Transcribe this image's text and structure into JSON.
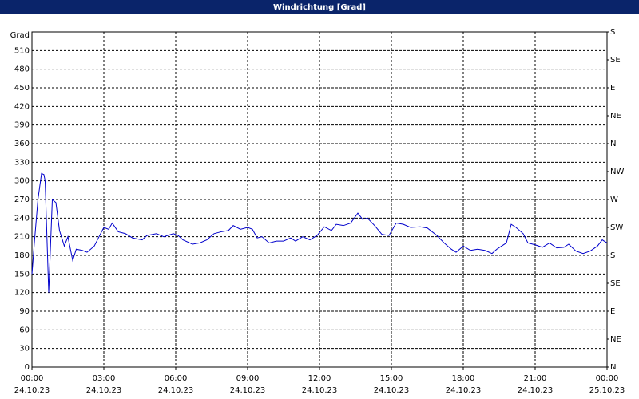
{
  "chart_data": {
    "type": "line",
    "title": "Windrichtung [Grad]",
    "ylabel": "Grad",
    "xlim": [
      0,
      24
    ],
    "xticks": [
      {
        "value": 0,
        "label": "00:00"
      },
      {
        "value": 3,
        "label": "03:00"
      },
      {
        "value": 6,
        "label": "06:00"
      },
      {
        "value": 9,
        "label": "09:00"
      },
      {
        "value": 12,
        "label": "12:00"
      },
      {
        "value": 15,
        "label": "15:00"
      },
      {
        "value": 18,
        "label": "18:00"
      },
      {
        "value": 21,
        "label": "21:00"
      },
      {
        "value": 24,
        "label": "00:00"
      }
    ],
    "xtick_dates": [
      "24.10.23",
      "24.10.23",
      "24.10.23",
      "24.10.23",
      "24.10.23",
      "24.10.23",
      "24.10.23",
      "24.10.23",
      "25.10.23"
    ],
    "ylim": [
      0,
      540
    ],
    "yticks": [
      0,
      30,
      60,
      90,
      120,
      150,
      180,
      210,
      240,
      270,
      300,
      330,
      360,
      390,
      420,
      450,
      480,
      510
    ],
    "y2lim": [
      0,
      540
    ],
    "y2ticks": [
      {
        "value": 0,
        "label": "N"
      },
      {
        "value": 45,
        "label": "NE"
      },
      {
        "value": 90,
        "label": "E"
      },
      {
        "value": 135,
        "label": "SE"
      },
      {
        "value": 180,
        "label": "S"
      },
      {
        "value": 225,
        "label": "SW"
      },
      {
        "value": 270,
        "label": "W"
      },
      {
        "value": 315,
        "label": "NW"
      },
      {
        "value": 360,
        "label": "N"
      },
      {
        "value": 405,
        "label": "NE"
      },
      {
        "value": 450,
        "label": "E"
      },
      {
        "value": 495,
        "label": "SE"
      },
      {
        "value": 540,
        "label": "S"
      }
    ],
    "grid": true,
    "x": [
      0,
      0.1,
      0.25,
      0.4,
      0.5,
      0.55,
      0.7,
      0.85,
      1.0,
      1.15,
      1.35,
      1.5,
      1.7,
      1.85,
      2.1,
      2.3,
      2.6,
      2.8,
      3.0,
      3.2,
      3.35,
      3.6,
      3.9,
      4.2,
      4.6,
      4.8,
      5.2,
      5.5,
      5.9,
      6.1,
      6.3,
      6.7,
      7.0,
      7.3,
      7.6,
      7.9,
      8.2,
      8.4,
      8.7,
      9.0,
      9.2,
      9.4,
      9.6,
      9.9,
      10.2,
      10.5,
      10.8,
      11.0,
      11.3,
      11.6,
      11.9,
      12.2,
      12.5,
      12.7,
      13.0,
      13.3,
      13.6,
      13.8,
      14.0,
      14.3,
      14.6,
      14.9,
      15.2,
      15.5,
      15.8,
      16.2,
      16.5,
      16.9,
      17.2,
      17.5,
      17.7,
      18.0,
      18.3,
      18.6,
      18.9,
      19.2,
      19.4,
      19.6,
      19.8,
      20.0,
      20.2,
      20.5,
      20.7,
      21.0,
      21.3,
      21.6,
      21.9,
      22.2,
      22.4,
      22.7,
      23.0,
      23.3,
      23.6,
      23.8,
      24.0
    ],
    "series": [
      {
        "color": "#0000cc",
        "values": [
          150,
          200,
          270,
          312,
          310,
          300,
          120,
          270,
          265,
          220,
          195,
          210,
          172,
          190,
          188,
          185,
          195,
          210,
          225,
          222,
          232,
          218,
          215,
          208,
          205,
          212,
          215,
          210,
          215,
          212,
          205,
          198,
          200,
          205,
          215,
          218,
          220,
          228,
          222,
          225,
          222,
          208,
          210,
          200,
          203,
          203,
          208,
          203,
          210,
          205,
          212,
          226,
          220,
          230,
          228,
          232,
          248,
          238,
          240,
          228,
          214,
          212,
          232,
          230,
          225,
          226,
          224,
          212,
          200,
          190,
          185,
          195,
          188,
          190,
          188,
          183,
          190,
          195,
          200,
          230,
          225,
          215,
          200,
          197,
          193,
          200,
          192,
          193,
          198,
          187,
          183,
          187,
          195,
          205,
          200
        ]
      }
    ]
  }
}
